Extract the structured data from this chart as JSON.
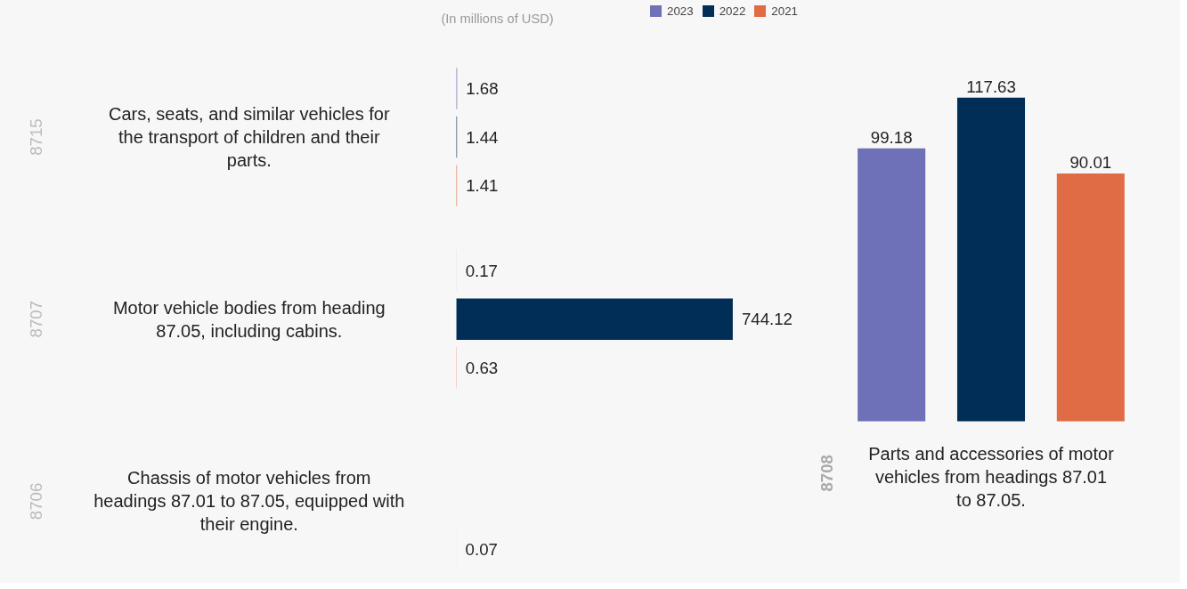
{
  "chart_data": [
    {
      "type": "bar",
      "orientation": "horizontal",
      "subtitle": "(In millions of USD)",
      "categories": [
        "Cars, seats, and similar vehicles for the transport of children and their parts.",
        "Motor vehicle bodies from heading 87.05, including cabins.",
        "Chassis of motor vehicles from headings 87.01 to 87.05, equipped with their engine."
      ],
      "series": [
        {
          "name": "2023",
          "color": "#6e71b8",
          "values": [
            1.68,
            0.17,
            null
          ]
        },
        {
          "name": "2022",
          "color": "#002e56",
          "values": [
            1.44,
            744.12,
            null
          ]
        },
        {
          "name": "2021",
          "color": "#e06c45",
          "values": [
            1.41,
            0.63,
            0.07
          ]
        }
      ],
      "annotations": [
        "8715",
        "8707",
        "8706"
      ],
      "data_labels": true,
      "grid": false,
      "legend": "top right"
    },
    {
      "type": "bar",
      "xlabel": "Parts and accessories of motor vehicles from headings 87.01 to 87.05.",
      "categories": [
        null,
        null,
        null
      ],
      "series": [
        {
          "colors": [
            "#6e71b8",
            "#002e56",
            "#e06c45"
          ],
          "values": [
            99.18,
            117.63,
            90.01
          ]
        }
      ],
      "annotations": [
        "8708"
      ],
      "data_labels": true,
      "grid": false
    }
  ]
}
